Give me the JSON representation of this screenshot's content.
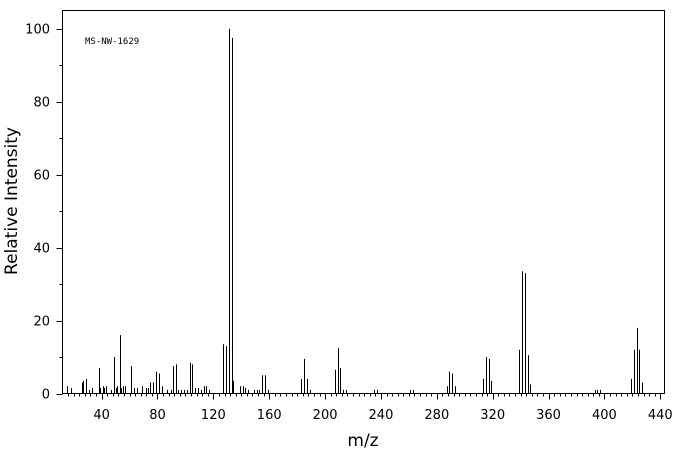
{
  "chart_data": {
    "type": "bar",
    "title": "MS-NW-1629",
    "xlabel": "m/z",
    "ylabel": "Relative Intensity",
    "xlim": [
      12,
      443
    ],
    "ylim": [
      0,
      105
    ],
    "x_ticks": [
      40,
      80,
      120,
      160,
      200,
      240,
      280,
      320,
      360,
      400,
      440
    ],
    "x_tick_labels": [
      "40",
      "80",
      "120",
      "160",
      "200",
      "240",
      "280",
      "320",
      "360",
      "400",
      "440"
    ],
    "y_ticks": [
      0,
      20,
      40,
      60,
      80,
      100
    ],
    "y_tick_labels": [
      "0",
      "20",
      "40",
      "60",
      "80",
      "100"
    ],
    "grid": false,
    "legend": "none",
    "peaks": [
      [
        15,
        2
      ],
      [
        18,
        1.5
      ],
      [
        26,
        3
      ],
      [
        27,
        3.5
      ],
      [
        29,
        4
      ],
      [
        31,
        1
      ],
      [
        33,
        1.5
      ],
      [
        38,
        7
      ],
      [
        39,
        1.5
      ],
      [
        41,
        2
      ],
      [
        42,
        1.5
      ],
      [
        43,
        2
      ],
      [
        47,
        1
      ],
      [
        49,
        10
      ],
      [
        50,
        1.5
      ],
      [
        51,
        2
      ],
      [
        53,
        16
      ],
      [
        54,
        1.5
      ],
      [
        55,
        2
      ],
      [
        57,
        2
      ],
      [
        61,
        7.5
      ],
      [
        63,
        1.5
      ],
      [
        65,
        1.5
      ],
      [
        69,
        2
      ],
      [
        72,
        1.5
      ],
      [
        73,
        1.5
      ],
      [
        75,
        3
      ],
      [
        77,
        3
      ],
      [
        79,
        6
      ],
      [
        81,
        5.5
      ],
      [
        83,
        2
      ],
      [
        87,
        1
      ],
      [
        90,
        1
      ],
      [
        91,
        7.5
      ],
      [
        93,
        8
      ],
      [
        95,
        1
      ],
      [
        97,
        1
      ],
      [
        99,
        1
      ],
      [
        101,
        1
      ],
      [
        103,
        8.5
      ],
      [
        105,
        8
      ],
      [
        107,
        1.5
      ],
      [
        109,
        1.5
      ],
      [
        111,
        1
      ],
      [
        113,
        2
      ],
      [
        115,
        2
      ],
      [
        117,
        1
      ],
      [
        127,
        13.5
      ],
      [
        129,
        13
      ],
      [
        131,
        100
      ],
      [
        133,
        97.5
      ],
      [
        134,
        3.5
      ],
      [
        139,
        2
      ],
      [
        141,
        2
      ],
      [
        143,
        1.5
      ],
      [
        145,
        1
      ],
      [
        149,
        1
      ],
      [
        151,
        1
      ],
      [
        153,
        1
      ],
      [
        155,
        5
      ],
      [
        157,
        5
      ],
      [
        159,
        1
      ],
      [
        183,
        4
      ],
      [
        185,
        9.5
      ],
      [
        187,
        4
      ],
      [
        189,
        1
      ],
      [
        207,
        6.5
      ],
      [
        209,
        12.5
      ],
      [
        211,
        7
      ],
      [
        213,
        1
      ],
      [
        215,
        1
      ],
      [
        235,
        1
      ],
      [
        237,
        1
      ],
      [
        261,
        1
      ],
      [
        263,
        1
      ],
      [
        287,
        2
      ],
      [
        289,
        6
      ],
      [
        291,
        5.5
      ],
      [
        293,
        2
      ],
      [
        313,
        4
      ],
      [
        315,
        10
      ],
      [
        317,
        9.5
      ],
      [
        319,
        3.5
      ],
      [
        339,
        12
      ],
      [
        341,
        33.5
      ],
      [
        343,
        33
      ],
      [
        345,
        10.5
      ],
      [
        347,
        2.5
      ],
      [
        393,
        1
      ],
      [
        395,
        1
      ],
      [
        397,
        1
      ],
      [
        419,
        4
      ],
      [
        421,
        12
      ],
      [
        423,
        18
      ],
      [
        425,
        12
      ],
      [
        427,
        3
      ]
    ]
  }
}
